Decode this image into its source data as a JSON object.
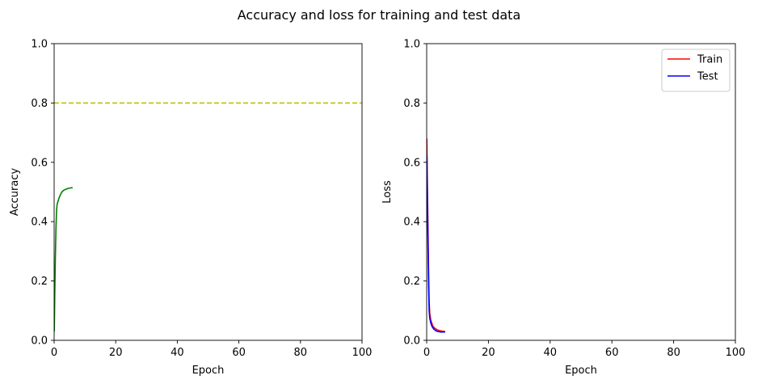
{
  "figure": {
    "title": "Accuracy and loss for training and test data"
  },
  "chart_data": [
    {
      "type": "line",
      "xlabel": "Epoch",
      "ylabel": "Accuracy",
      "xlim": [
        0,
        100
      ],
      "ylim": [
        0,
        1.0
      ],
      "xticks": [
        "0",
        "20",
        "40",
        "60",
        "80",
        "100"
      ],
      "yticks": [
        "0.0",
        "0.2",
        "0.4",
        "0.6",
        "0.8",
        "1.0"
      ],
      "grid": false,
      "series": [
        {
          "color": "#008000",
          "style": "solid",
          "x": [
            0.05,
            0.2,
            0.4,
            0.6,
            0.8,
            1.0,
            1.3,
            1.6,
            2.0,
            2.5,
            3.0,
            3.5,
            4.0,
            4.5,
            5.0,
            5.5,
            6.0
          ],
          "y": [
            0.03,
            0.15,
            0.28,
            0.38,
            0.44,
            0.46,
            0.47,
            0.48,
            0.49,
            0.5,
            0.505,
            0.508,
            0.51,
            0.512,
            0.513,
            0.514,
            0.514
          ]
        },
        {
          "color": "#bfbf00",
          "style": "dashed",
          "x": [
            0,
            100
          ],
          "y": [
            0.8,
            0.8
          ]
        }
      ]
    },
    {
      "type": "line",
      "xlabel": "Epoch",
      "ylabel": "Loss",
      "xlim": [
        0,
        100
      ],
      "ylim": [
        0,
        1.0
      ],
      "xticks": [
        "0",
        "20",
        "40",
        "60",
        "80",
        "100"
      ],
      "yticks": [
        "0.0",
        "0.2",
        "0.4",
        "0.6",
        "0.8",
        "1.0"
      ],
      "grid": false,
      "legend": "top-right",
      "series": [
        {
          "name": "Train",
          "color": "#ff0000",
          "style": "solid",
          "x": [
            0.05,
            0.2,
            0.4,
            0.6,
            0.8,
            1.0,
            1.3,
            1.6,
            2.0,
            2.5,
            3.0,
            3.5,
            4.0,
            4.5,
            5.0,
            5.5,
            6.0
          ],
          "y": [
            0.68,
            0.55,
            0.4,
            0.25,
            0.13,
            0.09,
            0.07,
            0.06,
            0.048,
            0.042,
            0.038,
            0.035,
            0.033,
            0.032,
            0.031,
            0.03,
            0.03
          ]
        },
        {
          "name": "Test",
          "color": "#0000ff",
          "style": "solid",
          "x": [
            0.05,
            0.2,
            0.4,
            0.6,
            0.8,
            1.0,
            1.3,
            1.6,
            2.0,
            2.5,
            3.0,
            3.5,
            4.0,
            4.5,
            5.0,
            5.5,
            6.0
          ],
          "y": [
            0.62,
            0.5,
            0.35,
            0.2,
            0.1,
            0.075,
            0.06,
            0.05,
            0.042,
            0.036,
            0.032,
            0.03,
            0.029,
            0.028,
            0.028,
            0.028,
            0.028
          ]
        }
      ]
    }
  ]
}
